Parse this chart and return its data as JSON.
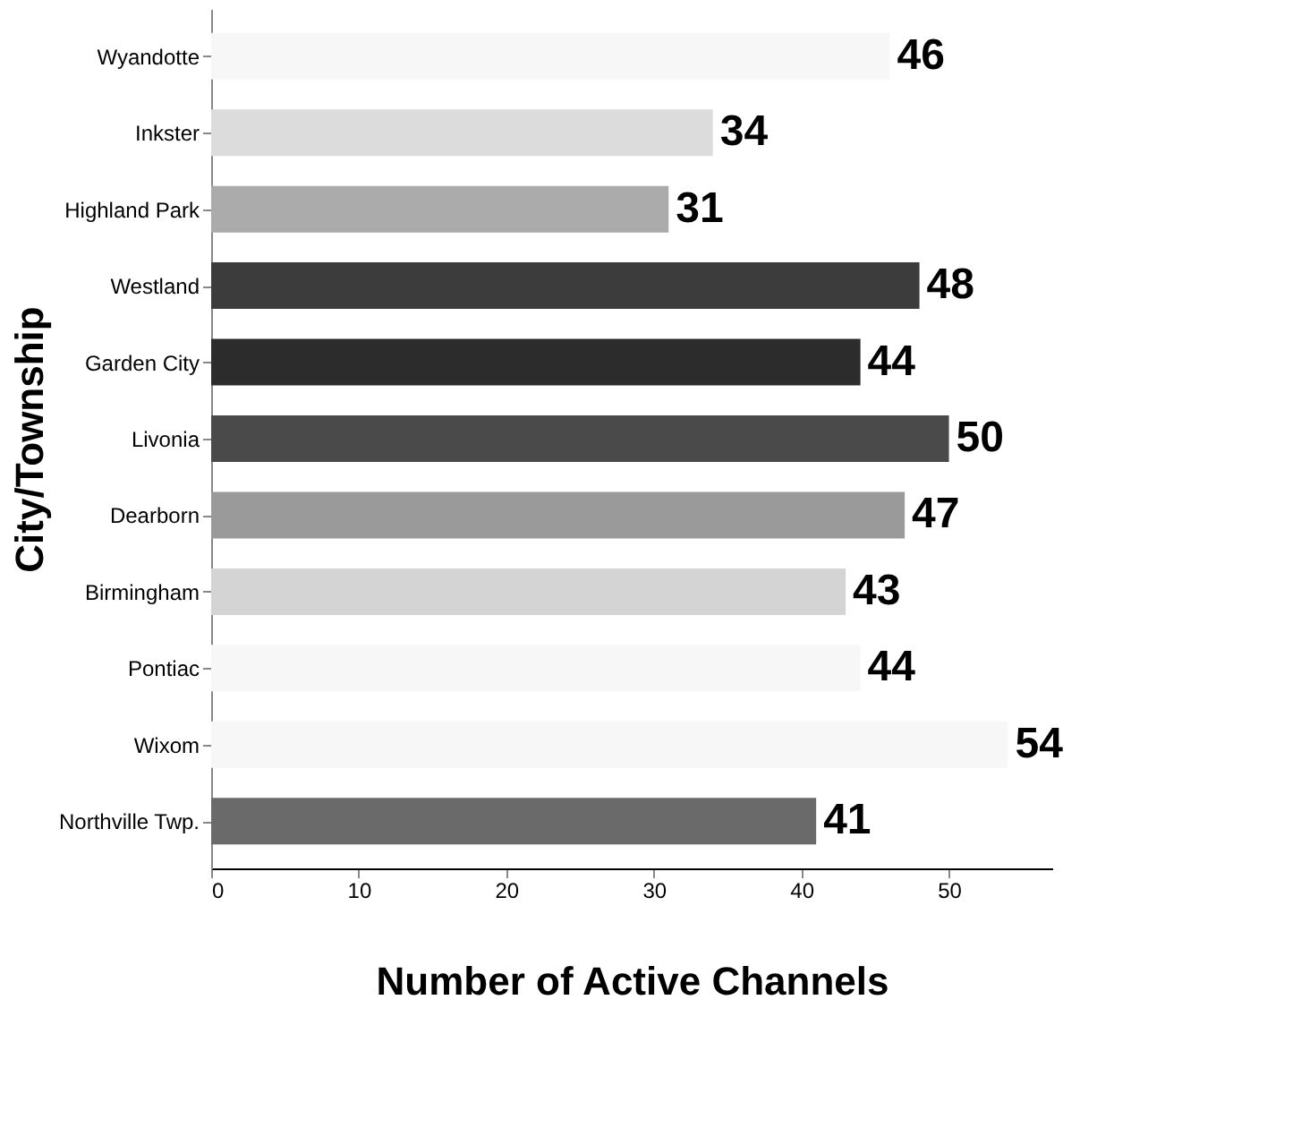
{
  "chart_data": {
    "type": "bar",
    "orientation": "horizontal",
    "xlabel": "Number of Active Channels",
    "ylabel": "City/Township",
    "categories": [
      "Wyandotte",
      "Inkster",
      "Highland Park",
      "Westland",
      "Garden City",
      "Livonia",
      "Dearborn",
      "Birmingham",
      "Pontiac",
      "Wixom",
      "Northville Twp."
    ],
    "values": [
      46,
      34,
      31,
      48,
      44,
      50,
      47,
      43,
      44,
      54,
      41
    ],
    "colors": [
      "#f7f7f7",
      "#dcdcdc",
      "#ababab",
      "#3c3c3c",
      "#2c2c2c",
      "#4a4a4a",
      "#9a9a9a",
      "#d4d4d4",
      "#f7f7f7",
      "#f7f7f7",
      "#6a6a6a"
    ],
    "xlim": [
      0,
      57
    ],
    "xticks": [
      0,
      10,
      20,
      30,
      40,
      50
    ],
    "data_labels": true,
    "grid": false
  }
}
